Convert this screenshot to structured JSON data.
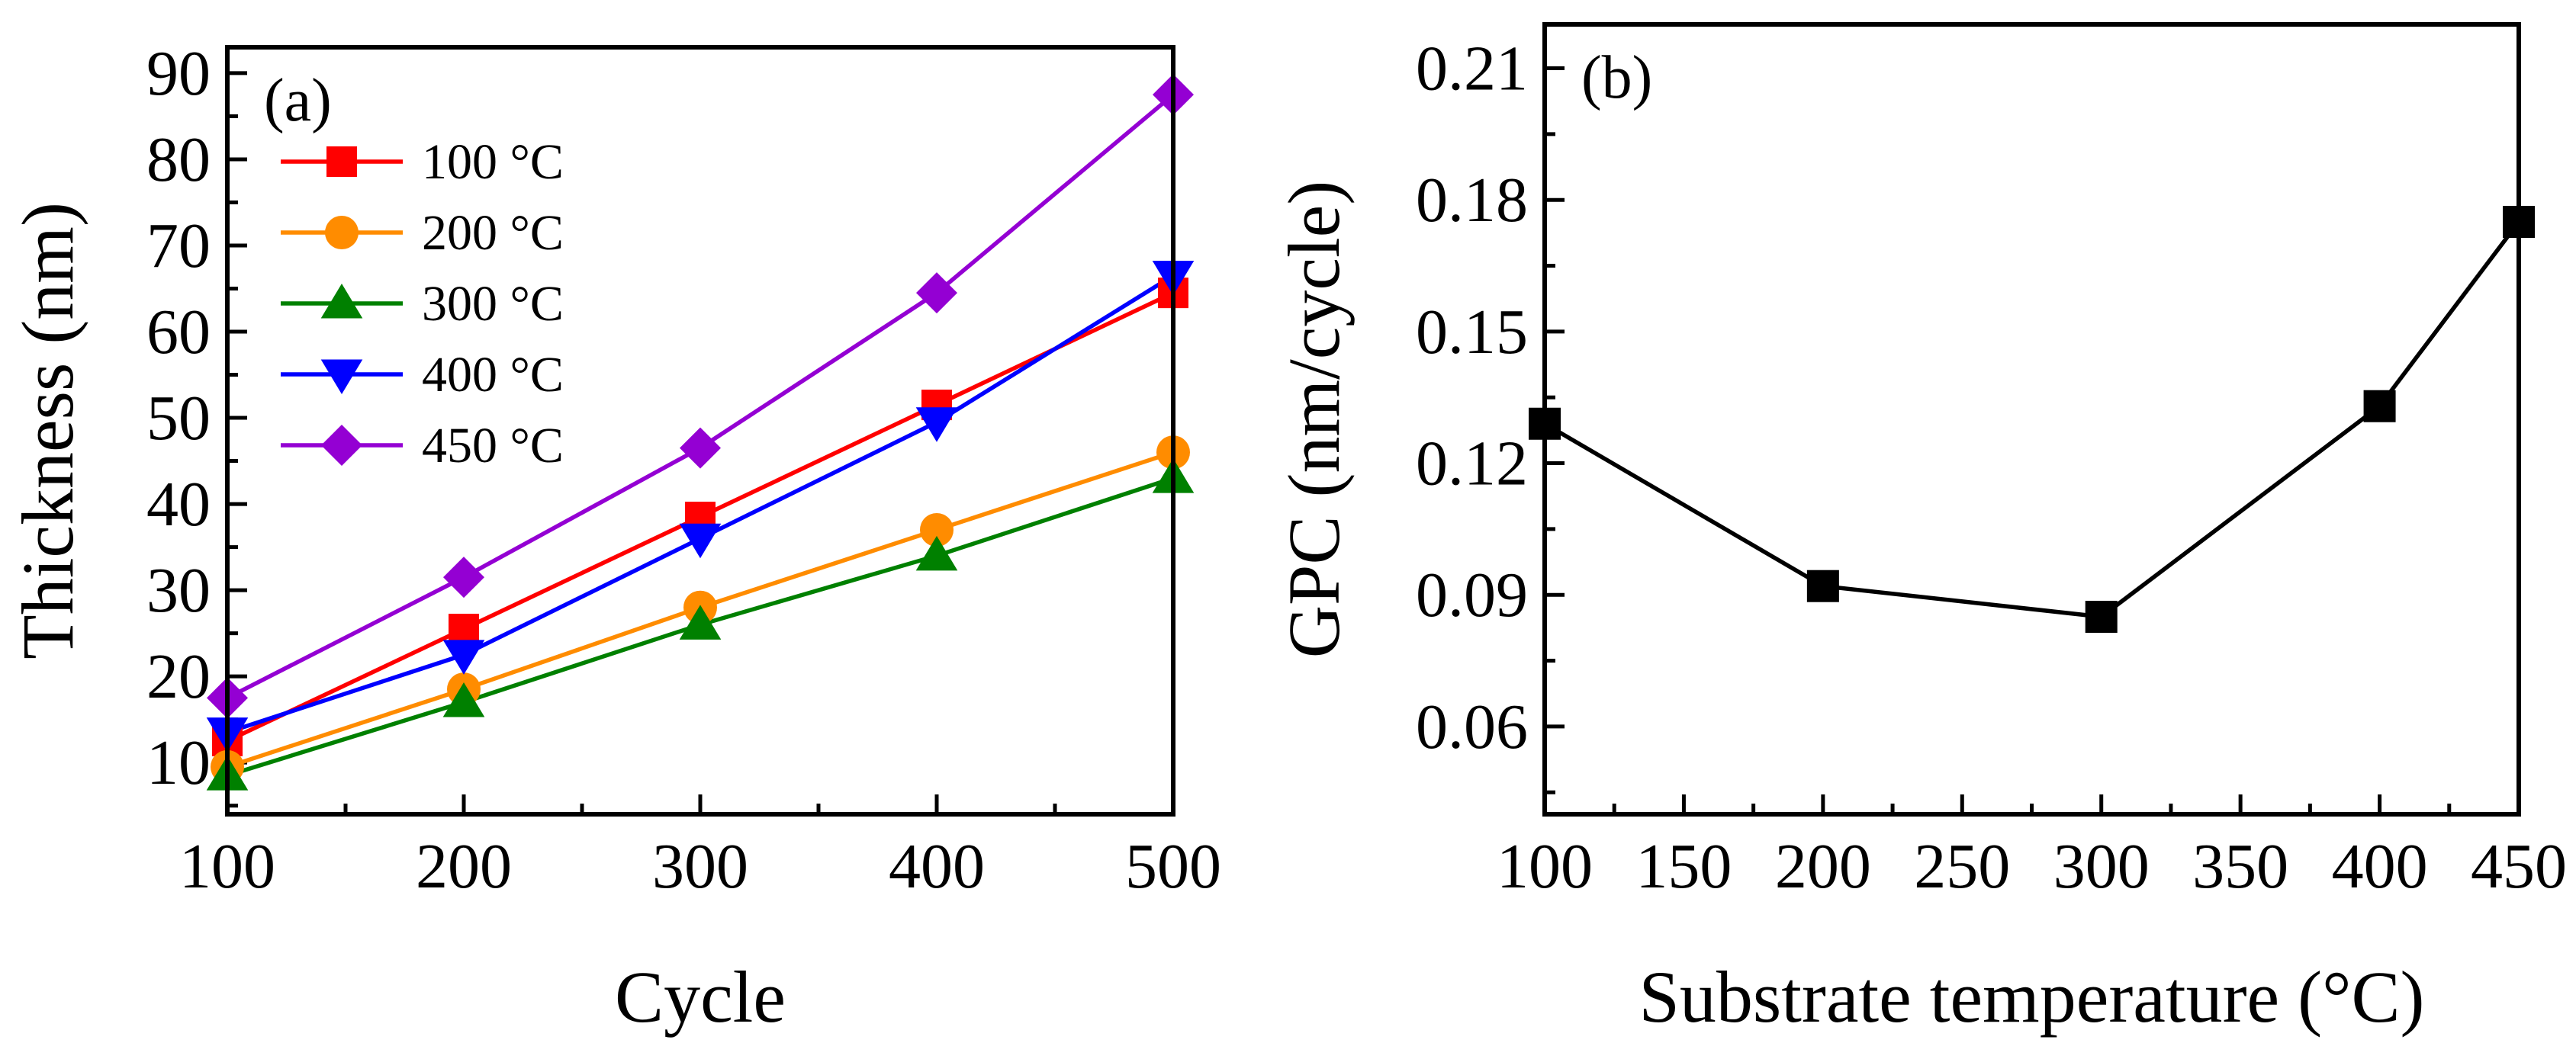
{
  "chart_data": [
    {
      "type": "line",
      "panel_label": "(a)",
      "title": "",
      "xlabel": "Cycle",
      "ylabel": "Thickness (nm)",
      "xlim": [
        100,
        500
      ],
      "ylim": [
        4,
        93
      ],
      "xticks": [
        "100",
        "200",
        "300",
        "400",
        "500"
      ],
      "yticks": [
        "10",
        "20",
        "30",
        "40",
        "50",
        "60",
        "70",
        "80",
        "90"
      ],
      "legend_position": "top-left",
      "x": [
        100,
        200,
        300,
        400,
        500
      ],
      "series": [
        {
          "name": "100 °C",
          "color": "#ff0000",
          "marker": "square",
          "values": [
            12.5,
            25.5,
            38.5,
            51.5,
            64.5
          ]
        },
        {
          "name": "200 °C",
          "color": "#ff8c00",
          "marker": "circle",
          "values": [
            9.5,
            18.5,
            28.0,
            37.0,
            46.0
          ]
        },
        {
          "name": "300 °C",
          "color": "#008000",
          "marker": "triangle-up",
          "values": [
            8.5,
            17.0,
            26.0,
            34.0,
            43.0
          ]
        },
        {
          "name": "400 °C",
          "color": "#0000ff",
          "marker": "triangle-down",
          "values": [
            13.5,
            22.5,
            36.0,
            49.5,
            66.5
          ]
        },
        {
          "name": "450 °C",
          "color": "#9400d3",
          "marker": "diamond",
          "values": [
            17.5,
            31.5,
            46.5,
            64.5,
            87.5
          ]
        }
      ]
    },
    {
      "type": "line",
      "panel_label": "(b)",
      "title": "",
      "xlabel": "Substrate temperature (°C)",
      "ylabel": "GPC (nm/cycle)",
      "xlim": [
        100,
        450
      ],
      "ylim": [
        0.04,
        0.22
      ],
      "xticks": [
        "100",
        "150",
        "200",
        "250",
        "300",
        "350",
        "400",
        "450"
      ],
      "yticks": [
        "0.06",
        "0.09",
        "0.12",
        "0.15",
        "0.18",
        "0.21"
      ],
      "x": [
        100,
        200,
        300,
        400,
        450
      ],
      "series": [
        {
          "name": "GPC",
          "color": "#000000",
          "marker": "square",
          "values": [
            0.129,
            0.092,
            0.085,
            0.133,
            0.175
          ]
        }
      ]
    }
  ]
}
